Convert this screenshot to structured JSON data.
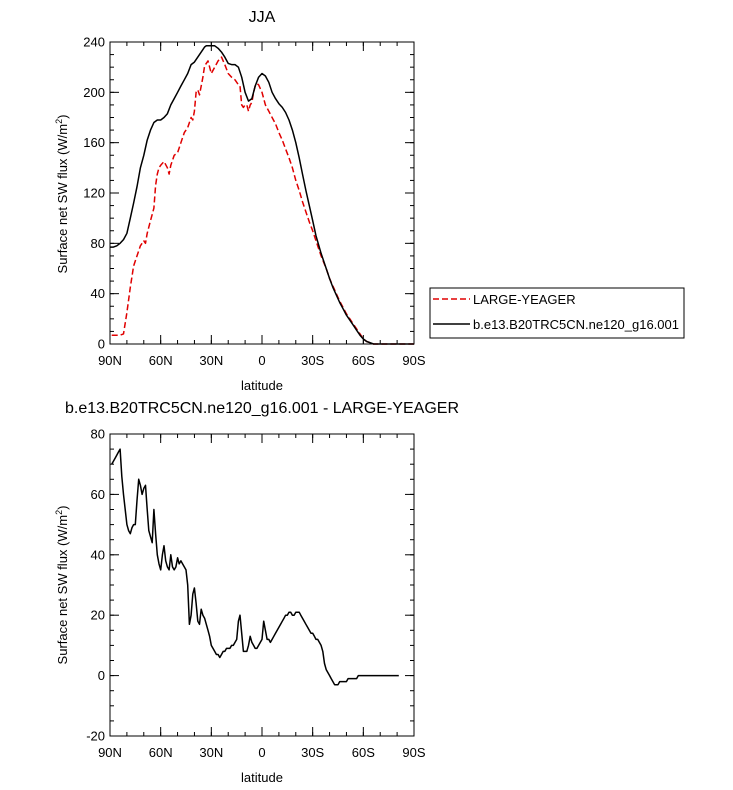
{
  "chart_data": [
    {
      "type": "line",
      "title": "JJA",
      "xlabel": "latitude",
      "ylabel": "Surface net SW flux (W/m",
      "ylabel_sup": "2",
      "ylabel_close": ")",
      "xlim": [
        90,
        -90
      ],
      "ylim": [
        0,
        240
      ],
      "xticks": [
        90,
        60,
        30,
        0,
        -30,
        -60,
        -90
      ],
      "xtick_labels": [
        "90N",
        "60N",
        "30N",
        "0",
        "30S",
        "60S",
        "90S"
      ],
      "yticks": [
        0,
        40,
        80,
        120,
        160,
        200,
        240
      ],
      "ytick_labels": [
        "0",
        "40",
        "80",
        "120",
        "160",
        "200",
        "240"
      ],
      "legend_position": "right",
      "series": [
        {
          "name": "LARGE-YEAGER",
          "color": "#e00000",
          "dash": true,
          "x": [
            89,
            86,
            84,
            82,
            80,
            78,
            76,
            74,
            72,
            71,
            70,
            69,
            68,
            66,
            64,
            63,
            62,
            61,
            60,
            58,
            56,
            55,
            54,
            52,
            50,
            48,
            46,
            44,
            42,
            41,
            40,
            39,
            38,
            37,
            36,
            35,
            34,
            32,
            30,
            28,
            26,
            24,
            22,
            20,
            18,
            16,
            14,
            13,
            12,
            11,
            10,
            9,
            8,
            7,
            6,
            5,
            4,
            3,
            2,
            1,
            0,
            -2,
            -4,
            -6,
            -8,
            -10,
            -12,
            -14,
            -16,
            -18,
            -20,
            -22,
            -24,
            -26,
            -28,
            -30,
            -32,
            -35,
            -38,
            -40,
            -42,
            -44,
            -46,
            -48,
            -50,
            -52,
            -54,
            -56,
            -58,
            -60,
            -62,
            -64,
            -66,
            -68,
            -70,
            -72,
            -74,
            -76,
            -78,
            -80,
            -85,
            -90
          ],
          "y": [
            7,
            7,
            7,
            8,
            25,
            45,
            62,
            70,
            78,
            80,
            82,
            80,
            88,
            98,
            108,
            126,
            135,
            140,
            142,
            145,
            140,
            135,
            142,
            150,
            152,
            160,
            168,
            172,
            180,
            178,
            185,
            200,
            202,
            198,
            205,
            212,
            221,
            225,
            215,
            220,
            225,
            228,
            222,
            215,
            212,
            210,
            206,
            205,
            190,
            188,
            190,
            190,
            185,
            190,
            192,
            200,
            205,
            207,
            206,
            203,
            200,
            190,
            185,
            180,
            175,
            168,
            162,
            155,
            148,
            140,
            130,
            122,
            113,
            105,
            97,
            90,
            82,
            70,
            60,
            52,
            46,
            40,
            34,
            29,
            24,
            20,
            16,
            12,
            8,
            4,
            2,
            1,
            0,
            0,
            0,
            0,
            0,
            0,
            0,
            0,
            0,
            0
          ]
        },
        {
          "name": "b.e13.B20TRC5CN.ne120_g16.001",
          "color": "#000000",
          "dash": false,
          "x": [
            90,
            88,
            86,
            84,
            82,
            80,
            78,
            76,
            74,
            72,
            70,
            68,
            66,
            64,
            62,
            60,
            58,
            56,
            54,
            52,
            50,
            48,
            46,
            44,
            42,
            40,
            38,
            36,
            35,
            34,
            33,
            32,
            30,
            28,
            26,
            24,
            22,
            20,
            18,
            16,
            14,
            12,
            10,
            8,
            6,
            4,
            2,
            0,
            -2,
            -4,
            -6,
            -8,
            -10,
            -12,
            -14,
            -16,
            -18,
            -20,
            -22,
            -24,
            -26,
            -28,
            -30,
            -32,
            -35,
            -38,
            -40,
            -42,
            -44,
            -46,
            -48,
            -50,
            -52,
            -54,
            -56,
            -58,
            -60,
            -62,
            -64,
            -66,
            -68,
            -70,
            -72,
            -74,
            -76,
            -78,
            -80,
            -85,
            -90
          ],
          "y": [
            77,
            77,
            78,
            80,
            83,
            88,
            100,
            112,
            125,
            140,
            150,
            162,
            170,
            176,
            178,
            178,
            180,
            183,
            190,
            195,
            200,
            205,
            210,
            215,
            222,
            224,
            228,
            232,
            234,
            236,
            237,
            237,
            237,
            237,
            235,
            232,
            228,
            223,
            222,
            222,
            220,
            212,
            200,
            193,
            195,
            205,
            212,
            215,
            213,
            208,
            200,
            195,
            191,
            188,
            184,
            178,
            170,
            160,
            148,
            135,
            122,
            110,
            98,
            86,
            72,
            60,
            52,
            45,
            39,
            33,
            28,
            23,
            19,
            15,
            11,
            7,
            4,
            2,
            1,
            0,
            0,
            0,
            0,
            0,
            0,
            0,
            0,
            0,
            0
          ]
        }
      ]
    },
    {
      "type": "line",
      "title": "b.e13.B20TRC5CN.ne120_g16.001 - LARGE-YEAGER",
      "xlabel": "latitude",
      "ylabel": "Surface net SW flux (W/m",
      "ylabel_sup": "2",
      "ylabel_close": ")",
      "xlim": [
        90,
        -90
      ],
      "ylim": [
        -20,
        80
      ],
      "xticks": [
        90,
        60,
        30,
        0,
        -30,
        -60,
        -90
      ],
      "xtick_labels": [
        "90N",
        "60N",
        "30N",
        "0",
        "30S",
        "60S",
        "90S"
      ],
      "yticks": [
        -20,
        0,
        20,
        40,
        60,
        80
      ],
      "ytick_labels": [
        "-20",
        "0",
        "20",
        "40",
        "60",
        "80"
      ],
      "series": [
        {
          "color": "#000000",
          "x": [
            89,
            88,
            87,
            86,
            85,
            84,
            83,
            82,
            81,
            80,
            79,
            78,
            77,
            76,
            75,
            74,
            73,
            72,
            71,
            70,
            69,
            68,
            67,
            66,
            65,
            64,
            63,
            62,
            61,
            60,
            59,
            58,
            57,
            56,
            55,
            54,
            53,
            52,
            51,
            50,
            49,
            48,
            47,
            46,
            45,
            44,
            43,
            42,
            41,
            40,
            39,
            38,
            37,
            36,
            35,
            34,
            33,
            32,
            31,
            30,
            29,
            28,
            27,
            26,
            25,
            24,
            23,
            22,
            21,
            20,
            19,
            18,
            17,
            16,
            15,
            14,
            13,
            12,
            11,
            10,
            9,
            8,
            7,
            6,
            5,
            4,
            3,
            2,
            1,
            0,
            -1,
            -2,
            -3,
            -4,
            -5,
            -6,
            -7,
            -8,
            -9,
            -10,
            -11,
            -12,
            -13,
            -14,
            -15,
            -16,
            -17,
            -18,
            -19,
            -20,
            -21,
            -22,
            -23,
            -24,
            -25,
            -26,
            -27,
            -28,
            -29,
            -30,
            -31,
            -32,
            -33,
            -34,
            -35,
            -36,
            -37,
            -38,
            -39,
            -40,
            -41,
            -42,
            -43,
            -44,
            -45,
            -46,
            -47,
            -48,
            -49,
            -50,
            -51,
            -52,
            -53,
            -54,
            -55,
            -56,
            -57,
            -58,
            -59,
            -60,
            -61,
            -62,
            -63,
            -64,
            -65,
            -66,
            -67,
            -68,
            -69,
            -70,
            -71,
            -72,
            -73,
            -74,
            -75,
            -76,
            -77,
            -78,
            -79,
            -80,
            -81
          ],
          "y": [
            70,
            71,
            72,
            73,
            74,
            75,
            66,
            60,
            55,
            50,
            48,
            47,
            49,
            50,
            50,
            58,
            65,
            63,
            60,
            62,
            63,
            55,
            48,
            46,
            44,
            55,
            47,
            40,
            37,
            35,
            40,
            43,
            38,
            36,
            35,
            40,
            36,
            35,
            36,
            39,
            37,
            38,
            37,
            36,
            35,
            30,
            17,
            20,
            27,
            29,
            24,
            18,
            17,
            22,
            20,
            19,
            17,
            15,
            13,
            10,
            9,
            8,
            7,
            7,
            6,
            7,
            8,
            8,
            9,
            9,
            9,
            10,
            10,
            11,
            12,
            18,
            20,
            14,
            8,
            8,
            8,
            10,
            13,
            11,
            10,
            9,
            9,
            10,
            11,
            12,
            18,
            15,
            12,
            12,
            11,
            12,
            13,
            14,
            15,
            16,
            17,
            18,
            19,
            20,
            20,
            21,
            21,
            20,
            20,
            21,
            21,
            21,
            20,
            19,
            18,
            17,
            16,
            15,
            14,
            14,
            13,
            12,
            12,
            11,
            10,
            8,
            4,
            2,
            1,
            0,
            -1,
            -2,
            -3,
            -3,
            -3,
            -2,
            -2,
            -2,
            -2,
            -2,
            -1,
            -1,
            -1,
            -1,
            -1,
            -1,
            0,
            0,
            0,
            0,
            0,
            0,
            0,
            0,
            0,
            0,
            0,
            0,
            0,
            0,
            0,
            0,
            0,
            0,
            0,
            0,
            0,
            0,
            0,
            0,
            0
          ]
        }
      ]
    }
  ]
}
